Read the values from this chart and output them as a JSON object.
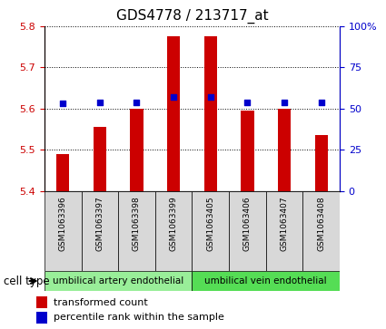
{
  "title": "GDS4778 / 213717_at",
  "samples": [
    "GSM1063396",
    "GSM1063397",
    "GSM1063398",
    "GSM1063399",
    "GSM1063405",
    "GSM1063406",
    "GSM1063407",
    "GSM1063408"
  ],
  "bar_values": [
    5.49,
    5.555,
    5.6,
    5.775,
    5.775,
    5.595,
    5.6,
    5.535
  ],
  "dot_values": [
    53,
    54,
    54,
    57,
    57,
    54,
    54,
    54
  ],
  "bar_bottom": 5.4,
  "ylim_left": [
    5.4,
    5.8
  ],
  "ylim_right": [
    0,
    100
  ],
  "yticks_left": [
    5.4,
    5.5,
    5.6,
    5.7,
    5.8
  ],
  "yticks_right": [
    0,
    25,
    50,
    75,
    100
  ],
  "bar_color": "#cc0000",
  "dot_color": "#0000cc",
  "cell_type_colors": [
    "#99ee99",
    "#55dd55"
  ],
  "cell_type_labels": [
    "umbilical artery endothelial",
    "umbilical vein endothelial"
  ],
  "legend_bar_label": "transformed count",
  "legend_dot_label": "percentile rank within the sample",
  "tick_color_left": "#cc0000",
  "tick_color_right": "#0000cc",
  "cell_type_label": "cell type",
  "title_fontsize": 11,
  "axis_fontsize": 8,
  "tick_fontsize": 8,
  "label_fontsize": 8,
  "legend_fontsize": 8
}
